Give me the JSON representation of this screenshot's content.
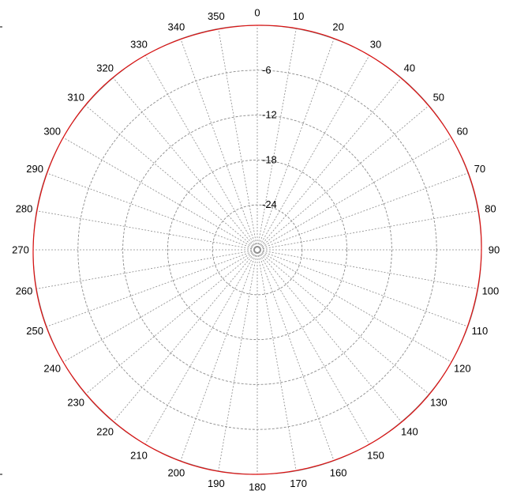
{
  "chart_data": {
    "type": "polar-line",
    "title": "",
    "angle_unit": "degrees",
    "angle_direction": "clockwise",
    "angle_zero": "top",
    "angle_labels": [
      0,
      10,
      20,
      30,
      40,
      50,
      60,
      70,
      80,
      90,
      100,
      110,
      120,
      130,
      140,
      150,
      160,
      170,
      180,
      190,
      200,
      210,
      220,
      230,
      240,
      250,
      260,
      270,
      280,
      290,
      300,
      310,
      320,
      330,
      340,
      350
    ],
    "radial_range": [
      -30,
      0
    ],
    "radial_ticks": [
      -6,
      -12,
      -18,
      -24
    ],
    "grid": true,
    "series": [
      {
        "color": "#dd1010",
        "angles": [
          0,
          45,
          90,
          135,
          180,
          225,
          270,
          315,
          360
        ],
        "values": [
          0,
          0,
          0,
          0,
          0,
          0,
          0,
          0,
          0
        ]
      }
    ]
  }
}
